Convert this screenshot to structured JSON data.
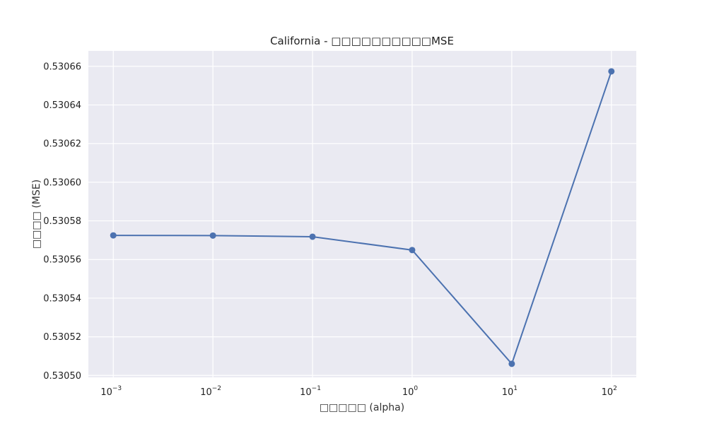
{
  "chart_data": {
    "type": "line",
    "title": "California - □□□□□□□□□□MSE",
    "xlabel": "□□□□□ (alpha)",
    "ylabel": "□□□□ (MSE)",
    "x_scale": "log",
    "x": [
      0.001,
      0.01,
      0.1,
      1,
      10,
      100
    ],
    "x_ticks": [
      {
        "base": "10",
        "exp": "−3"
      },
      {
        "base": "10",
        "exp": "−2"
      },
      {
        "base": "10",
        "exp": "−1"
      },
      {
        "base": "10",
        "exp": "0"
      },
      {
        "base": "10",
        "exp": "1"
      },
      {
        "base": "10",
        "exp": "2"
      }
    ],
    "y_ticks": [
      "0.53050",
      "0.53052",
      "0.53054",
      "0.53056",
      "0.53058",
      "0.53060",
      "0.53062",
      "0.53064",
      "0.53066"
    ],
    "ylim": [
      0.530499,
      0.530668
    ],
    "grid": true,
    "series": [
      {
        "color": "#4c72b0",
        "marker": "circle",
        "values": [
          0.5305725,
          0.5305724,
          0.5305718,
          0.5305649,
          0.530506,
          0.5306574
        ]
      }
    ]
  }
}
